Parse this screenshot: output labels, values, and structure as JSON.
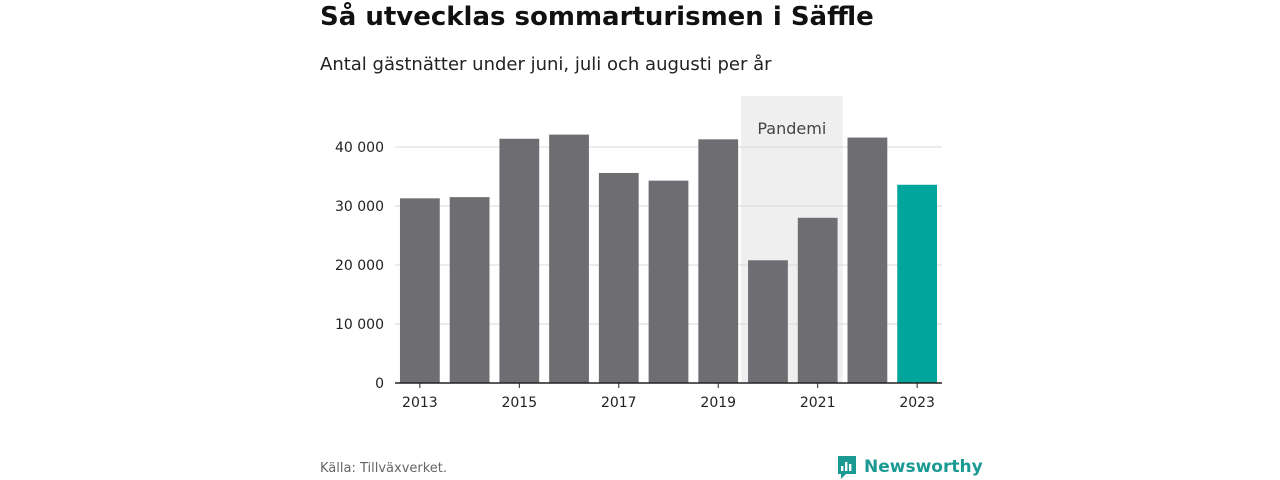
{
  "header": {
    "title": "Så utvecklas sommarturismen i Säffle",
    "subtitle": "Antal gästnätter under juni, juli och augusti per år"
  },
  "footer": {
    "source": "Källa: Tillväxverket.",
    "brand": "Newsworthy"
  },
  "colors": {
    "bar": "#6e6d72",
    "highlight": "#00a69c",
    "band": "#efefef",
    "grid": "#d9d9d9",
    "brand": "#1b9a94"
  },
  "chart_data": {
    "type": "bar",
    "title": "Så utvecklas sommarturismen i Säffle",
    "subtitle": "Antal gästnätter under juni, juli och augusti per år",
    "categories": [
      "2013",
      "2014",
      "2015",
      "2016",
      "2017",
      "2018",
      "2019",
      "2020",
      "2021",
      "2022",
      "2023"
    ],
    "values": [
      31300,
      31500,
      41400,
      42100,
      35600,
      34300,
      41300,
      20800,
      28000,
      41600,
      33600
    ],
    "highlight_category": "2023",
    "xtick_labels": [
      "2013",
      "2015",
      "2017",
      "2019",
      "2021",
      "2023"
    ],
    "yticks": [
      0,
      10000,
      20000,
      30000,
      40000
    ],
    "ytick_labels": [
      "0",
      "10 000",
      "20 000",
      "30 000",
      "40 000"
    ],
    "ylim": [
      0,
      48000
    ],
    "xlabel": "",
    "ylabel": "",
    "grid": true,
    "annotation": {
      "label": "Pandemi",
      "from": "2020",
      "to": "2021"
    }
  }
}
